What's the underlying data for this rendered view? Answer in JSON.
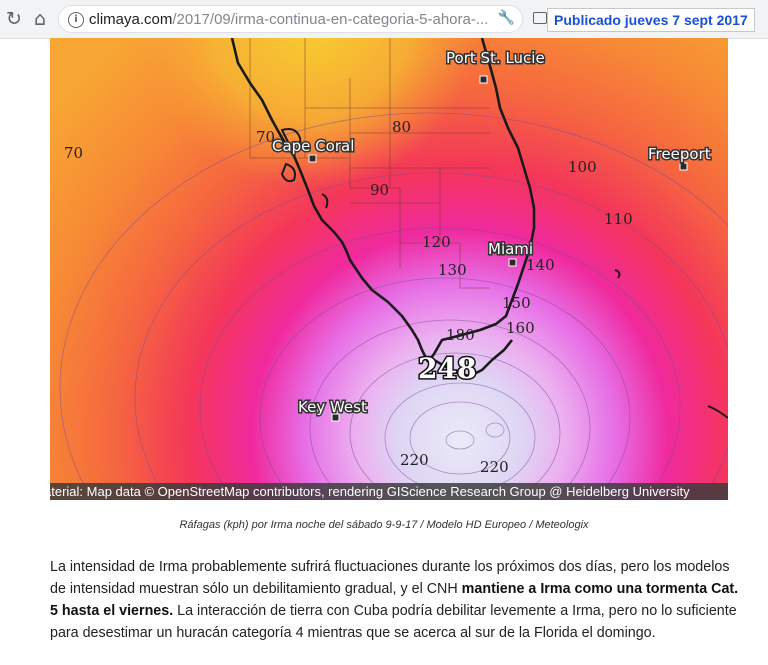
{
  "browser": {
    "url_domain": "climaya.com",
    "url_path": "/2017/09/irma-continua-en-categoria-5-ahora-...",
    "icons": [
      "reload-icon",
      "home-icon",
      "info-icon",
      "wrench-icon",
      "cast-icon"
    ]
  },
  "badge": {
    "text": "Publicado jueves 7 sept 2017"
  },
  "map": {
    "places": {
      "port_st_lucie": "Port St. Lucie",
      "cape_coral": "Cape Coral",
      "freeport": "Freeport",
      "miami": "Miami",
      "key_west": "Key West"
    },
    "contours": {
      "c70a": "70",
      "c70b": "70",
      "c80": "80",
      "c90": "90",
      "c100": "100",
      "c110": "110",
      "c120": "120",
      "c130": "130",
      "c140": "140",
      "c150": "150",
      "c160": "160",
      "c180": "180",
      "c220a": "220",
      "c220b": "220",
      "peak": "248"
    },
    "credit": "aterial: Map data © OpenStreetMap contributors, rendering GIScience Research Group @ Heidelberg University"
  },
  "caption": "Ráfagas (kph) por Irma noche del sábado 9-9-17 / Modelo HD Europeo / Meteologix",
  "article": {
    "p1": "La intensidad de Irma probablemente sufrirá fluctuaciones durante los próximos dos días, pero los modelos de intensidad muestran sólo un debilitamiento gradual, y el CNH ",
    "p1_bold": "mantiene a Irma como una tormenta Cat. 5 hasta el viernes.",
    "p2": "  La interacción de tierra con Cuba podría debilitar levemente a Irma, pero no lo suficiente para desestimar un huracán categoría 4 mientras que se acerca al sur de la Florida el domingo."
  }
}
